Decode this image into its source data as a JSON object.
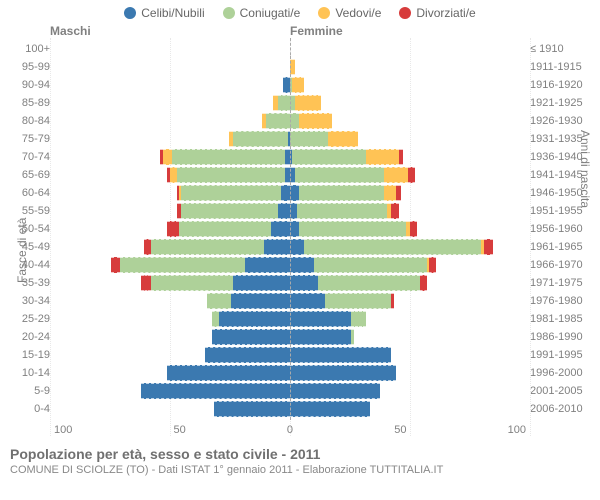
{
  "legend": [
    {
      "label": "Celibi/Nubili",
      "color": "#3b79b0"
    },
    {
      "label": "Coniugati/e",
      "color": "#aed199"
    },
    {
      "label": "Vedovi/e",
      "color": "#ffc355"
    },
    {
      "label": "Divorziati/e",
      "color": "#d73c3c"
    }
  ],
  "header_male": "Maschi",
  "header_female": "Femmine",
  "yaxis_left": "Fasce di età",
  "yaxis_right": "Anni di nascita",
  "xmax": 100,
  "xticks": [
    100,
    50,
    0,
    50,
    100
  ],
  "colors": {
    "single": "#3b79b0",
    "married": "#aed199",
    "widowed": "#ffc355",
    "divorced": "#d73c3c",
    "grid": "#e8e8e8",
    "axis_text": "#808080",
    "background": "#ffffff"
  },
  "title": "Popolazione per età, sesso e stato civile - 2011",
  "subtitle": "COMUNE DI SCIOLZE (TO) - Dati ISTAT 1° gennaio 2011 - Elaborazione TUTTITALIA.IT",
  "rows": [
    {
      "age": "100+",
      "birth": "≤ 1910",
      "m": [
        0,
        0,
        0,
        0
      ],
      "f": [
        0,
        0,
        0,
        0
      ]
    },
    {
      "age": "95-99",
      "birth": "1911-1915",
      "m": [
        0,
        0,
        0,
        0
      ],
      "f": [
        0,
        0,
        2,
        0
      ]
    },
    {
      "age": "90-94",
      "birth": "1916-1920",
      "m": [
        3,
        0,
        0,
        0
      ],
      "f": [
        0,
        1,
        5,
        0
      ]
    },
    {
      "age": "85-89",
      "birth": "1921-1925",
      "m": [
        0,
        5,
        2,
        0
      ],
      "f": [
        0,
        2,
        11,
        0
      ]
    },
    {
      "age": "80-84",
      "birth": "1926-1930",
      "m": [
        0,
        10,
        2,
        0
      ],
      "f": [
        0,
        4,
        14,
        0
      ]
    },
    {
      "age": "75-79",
      "birth": "1931-1935",
      "m": [
        1,
        23,
        2,
        0
      ],
      "f": [
        0,
        16,
        13,
        0
      ]
    },
    {
      "age": "70-74",
      "birth": "1936-1940",
      "m": [
        2,
        48,
        4,
        1
      ],
      "f": [
        1,
        31,
        14,
        2
      ]
    },
    {
      "age": "65-69",
      "birth": "1941-1945",
      "m": [
        2,
        46,
        3,
        1
      ],
      "f": [
        2,
        38,
        10,
        3
      ]
    },
    {
      "age": "60-64",
      "birth": "1946-1950",
      "m": [
        4,
        42,
        1,
        1
      ],
      "f": [
        4,
        36,
        5,
        2
      ]
    },
    {
      "age": "55-59",
      "birth": "1951-1955",
      "m": [
        5,
        41,
        0,
        2
      ],
      "f": [
        3,
        38,
        2,
        3
      ]
    },
    {
      "age": "50-54",
      "birth": "1956-1960",
      "m": [
        8,
        39,
        0,
        5
      ],
      "f": [
        4,
        45,
        2,
        3
      ]
    },
    {
      "age": "45-49",
      "birth": "1961-1965",
      "m": [
        11,
        48,
        0,
        3
      ],
      "f": [
        6,
        75,
        1,
        4
      ]
    },
    {
      "age": "40-44",
      "birth": "1966-1970",
      "m": [
        19,
        53,
        0,
        4
      ],
      "f": [
        10,
        48,
        1,
        3
      ]
    },
    {
      "age": "35-39",
      "birth": "1971-1975",
      "m": [
        24,
        35,
        0,
        4
      ],
      "f": [
        12,
        43,
        0,
        3
      ]
    },
    {
      "age": "30-34",
      "birth": "1976-1980",
      "m": [
        25,
        10,
        0,
        0
      ],
      "f": [
        15,
        28,
        0,
        1
      ]
    },
    {
      "age": "25-29",
      "birth": "1981-1985",
      "m": [
        30,
        3,
        0,
        0
      ],
      "f": [
        26,
        6,
        0,
        0
      ]
    },
    {
      "age": "20-24",
      "birth": "1986-1990",
      "m": [
        33,
        0,
        0,
        0
      ],
      "f": [
        26,
        1,
        0,
        0
      ]
    },
    {
      "age": "15-19",
      "birth": "1991-1995",
      "m": [
        36,
        0,
        0,
        0
      ],
      "f": [
        43,
        0,
        0,
        0
      ]
    },
    {
      "age": "10-14",
      "birth": "1996-2000",
      "m": [
        52,
        0,
        0,
        0
      ],
      "f": [
        45,
        0,
        0,
        0
      ]
    },
    {
      "age": "5-9",
      "birth": "2001-2005",
      "m": [
        63,
        0,
        0,
        0
      ],
      "f": [
        38,
        0,
        0,
        0
      ]
    },
    {
      "age": "0-4",
      "birth": "2006-2010",
      "m": [
        32,
        0,
        0,
        0
      ],
      "f": [
        34,
        0,
        0,
        0
      ]
    }
  ]
}
